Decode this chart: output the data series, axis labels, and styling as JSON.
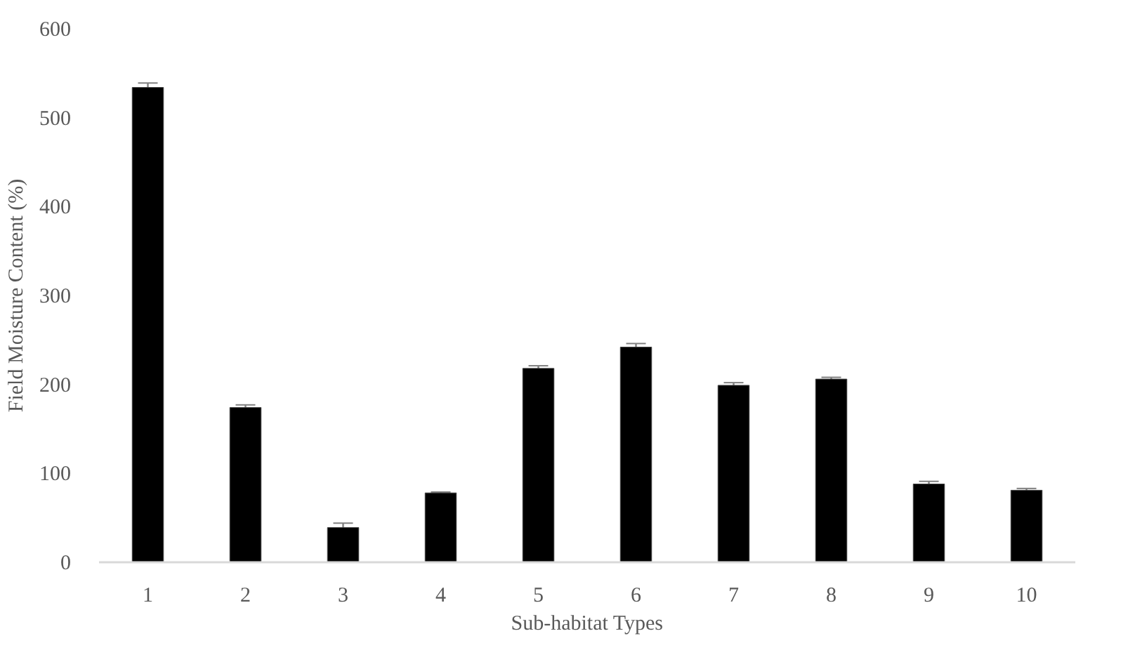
{
  "chart_data": {
    "type": "bar",
    "xlabel": "Sub-habitat Types",
    "ylabel": "Field Moisture Content (%)",
    "categories": [
      "1",
      "2",
      "3",
      "4",
      "5",
      "6",
      "7",
      "8",
      "9",
      "10"
    ],
    "values": [
      534,
      174,
      39,
      78,
      218,
      242,
      199,
      206,
      88,
      81
    ],
    "errors": [
      5,
      3,
      5,
      1,
      3,
      4,
      3,
      2,
      3,
      2
    ],
    "color": "#000000",
    "ylim": [
      0,
      600
    ],
    "yticks": [
      0,
      100,
      200,
      300,
      400,
      500,
      600
    ],
    "grid": false
  }
}
